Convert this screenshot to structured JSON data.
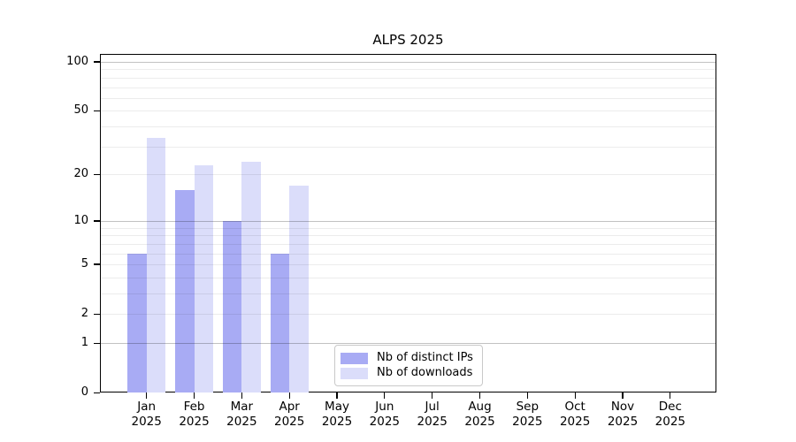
{
  "title": "ALPS 2025",
  "chart_data": {
    "type": "bar",
    "title": "ALPS 2025",
    "categories": [
      "Jan",
      "Feb",
      "Mar",
      "Apr",
      "May",
      "Jun",
      "Jul",
      "Aug",
      "Sep",
      "Oct",
      "Nov",
      "Dec"
    ],
    "category_year": "2025",
    "series": [
      {
        "name": "Nb of distinct IPs",
        "color": "#a8abf4",
        "values": [
          6,
          16,
          10,
          6,
          0,
          0,
          0,
          0,
          0,
          0,
          0,
          0
        ]
      },
      {
        "name": "Nb of downloads",
        "color": "#dbddfa",
        "values": [
          34,
          23,
          24,
          17,
          0,
          0,
          0,
          0,
          0,
          0,
          0,
          0
        ]
      }
    ],
    "scale": "log1p",
    "ylim": [
      0,
      100
    ],
    "yticks": [
      0,
      1,
      2,
      5,
      10,
      20,
      50,
      100
    ],
    "major_gridlines": [
      1,
      10,
      100
    ],
    "minor_gridlines": [
      2,
      3,
      4,
      5,
      6,
      7,
      8,
      9,
      20,
      30,
      40,
      50,
      60,
      70,
      80,
      90
    ],
    "grid": true,
    "legend_position": "bottom-center"
  }
}
